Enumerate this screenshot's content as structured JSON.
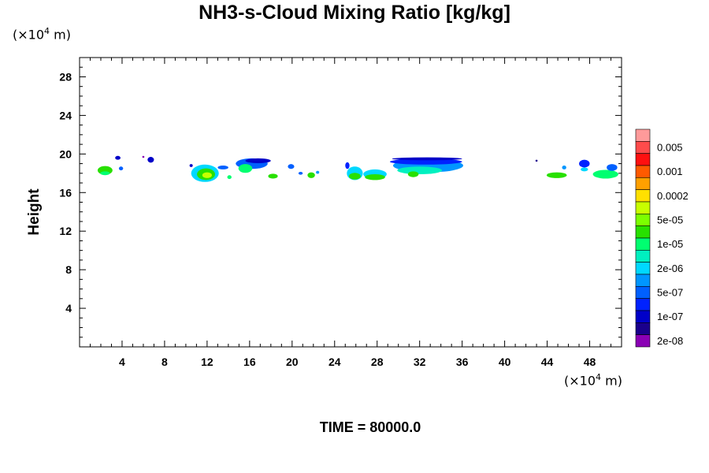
{
  "chart_data": {
    "type": "heatmap",
    "title": "NH3-s-Cloud Mixing Ratio [kg/kg]",
    "ylabel": "Height",
    "xlabel": "",
    "x_unit": {
      "prefix": "(×10",
      "exp": "4",
      "suffix": " m)"
    },
    "y_unit": {
      "prefix": "(×10",
      "exp": "4",
      "suffix": " m)"
    },
    "xlim": [
      0,
      51
    ],
    "ylim": [
      0,
      30
    ],
    "x_ticks": [
      4,
      8,
      12,
      16,
      20,
      24,
      28,
      32,
      36,
      40,
      44,
      48
    ],
    "y_ticks": [
      4,
      8,
      12,
      16,
      20,
      24,
      28
    ],
    "legend": {
      "placement": "right",
      "labels": [
        "0.005",
        "0.001",
        "0.0002",
        "5e-05",
        "1e-05",
        "2e-06",
        "5e-07",
        "1e-07",
        "2e-08"
      ],
      "colors_top_to_bottom": [
        "#ff9a9a",
        "#ff4b4b",
        "#ff1010",
        "#ff5a00",
        "#ffa000",
        "#ffe000",
        "#c8ff00",
        "#7cff00",
        "#28e000",
        "#00ff70",
        "#00f0c0",
        "#00d8ff",
        "#0096ff",
        "#0060ff",
        "#0022ff",
        "#0000c8",
        "#1a008c",
        "#8a00b4"
      ]
    },
    "cells": [
      {
        "x": 2.4,
        "y": 18.3,
        "w": 1.4,
        "h": 0.9,
        "level": 8
      },
      {
        "x": 2.4,
        "y": 18.0,
        "w": 0.9,
        "h": 0.4,
        "level": 9
      },
      {
        "x": 3.6,
        "y": 19.6,
        "w": 0.5,
        "h": 0.4,
        "level": 15
      },
      {
        "x": 3.9,
        "y": 18.5,
        "w": 0.4,
        "h": 0.4,
        "level": 13
      },
      {
        "x": 6.7,
        "y": 19.4,
        "w": 0.6,
        "h": 0.6,
        "level": 15
      },
      {
        "x": 6.0,
        "y": 19.7,
        "w": 0.2,
        "h": 0.2,
        "level": 17
      },
      {
        "x": 11.8,
        "y": 18.0,
        "w": 2.6,
        "h": 1.8,
        "level": 11
      },
      {
        "x": 11.9,
        "y": 17.9,
        "w": 1.7,
        "h": 1.2,
        "level": 8
      },
      {
        "x": 12.0,
        "y": 17.8,
        "w": 0.9,
        "h": 0.6,
        "level": 6
      },
      {
        "x": 13.5,
        "y": 18.6,
        "w": 1.0,
        "h": 0.4,
        "level": 13
      },
      {
        "x": 14.1,
        "y": 17.6,
        "w": 0.4,
        "h": 0.4,
        "level": 9
      },
      {
        "x": 10.5,
        "y": 18.8,
        "w": 0.3,
        "h": 0.3,
        "level": 15
      },
      {
        "x": 16.2,
        "y": 19.0,
        "w": 3.0,
        "h": 1.1,
        "level": 13
      },
      {
        "x": 15.6,
        "y": 18.5,
        "w": 1.3,
        "h": 0.9,
        "level": 9
      },
      {
        "x": 16.8,
        "y": 19.3,
        "w": 2.4,
        "h": 0.5,
        "level": 15
      },
      {
        "x": 18.2,
        "y": 17.7,
        "w": 0.9,
        "h": 0.5,
        "level": 8
      },
      {
        "x": 19.9,
        "y": 18.7,
        "w": 0.6,
        "h": 0.5,
        "level": 13
      },
      {
        "x": 20.8,
        "y": 18.0,
        "w": 0.4,
        "h": 0.3,
        "level": 13
      },
      {
        "x": 21.8,
        "y": 17.8,
        "w": 0.7,
        "h": 0.6,
        "level": 8
      },
      {
        "x": 22.4,
        "y": 18.1,
        "w": 0.3,
        "h": 0.3,
        "level": 12
      },
      {
        "x": 25.9,
        "y": 18.0,
        "w": 1.5,
        "h": 1.4,
        "level": 11
      },
      {
        "x": 25.9,
        "y": 17.7,
        "w": 1.1,
        "h": 0.7,
        "level": 8
      },
      {
        "x": 25.2,
        "y": 18.8,
        "w": 0.4,
        "h": 0.7,
        "level": 14
      },
      {
        "x": 27.8,
        "y": 17.9,
        "w": 2.2,
        "h": 1.0,
        "level": 11
      },
      {
        "x": 27.8,
        "y": 17.6,
        "w": 1.9,
        "h": 0.6,
        "level": 8
      },
      {
        "x": 32.8,
        "y": 18.8,
        "w": 6.6,
        "h": 1.4,
        "level": 12
      },
      {
        "x": 32.6,
        "y": 19.2,
        "w": 6.8,
        "h": 0.6,
        "level": 14
      },
      {
        "x": 32.0,
        "y": 18.3,
        "w": 4.2,
        "h": 0.8,
        "level": 10
      },
      {
        "x": 31.4,
        "y": 17.9,
        "w": 1.0,
        "h": 0.6,
        "level": 8
      },
      {
        "x": 32.7,
        "y": 19.5,
        "w": 6.6,
        "h": 0.3,
        "level": 15
      },
      {
        "x": 43.0,
        "y": 19.3,
        "w": 0.2,
        "h": 0.2,
        "level": 16
      },
      {
        "x": 44.9,
        "y": 17.8,
        "w": 1.9,
        "h": 0.6,
        "level": 8
      },
      {
        "x": 45.6,
        "y": 18.6,
        "w": 0.4,
        "h": 0.4,
        "level": 12
      },
      {
        "x": 47.5,
        "y": 19.0,
        "w": 1.0,
        "h": 0.8,
        "level": 14
      },
      {
        "x": 47.5,
        "y": 18.4,
        "w": 0.7,
        "h": 0.4,
        "level": 11
      },
      {
        "x": 49.5,
        "y": 17.9,
        "w": 2.4,
        "h": 0.9,
        "level": 9
      },
      {
        "x": 50.1,
        "y": 18.6,
        "w": 1.0,
        "h": 0.7,
        "level": 13
      }
    ]
  },
  "time_label": "TIME = 80000.0"
}
